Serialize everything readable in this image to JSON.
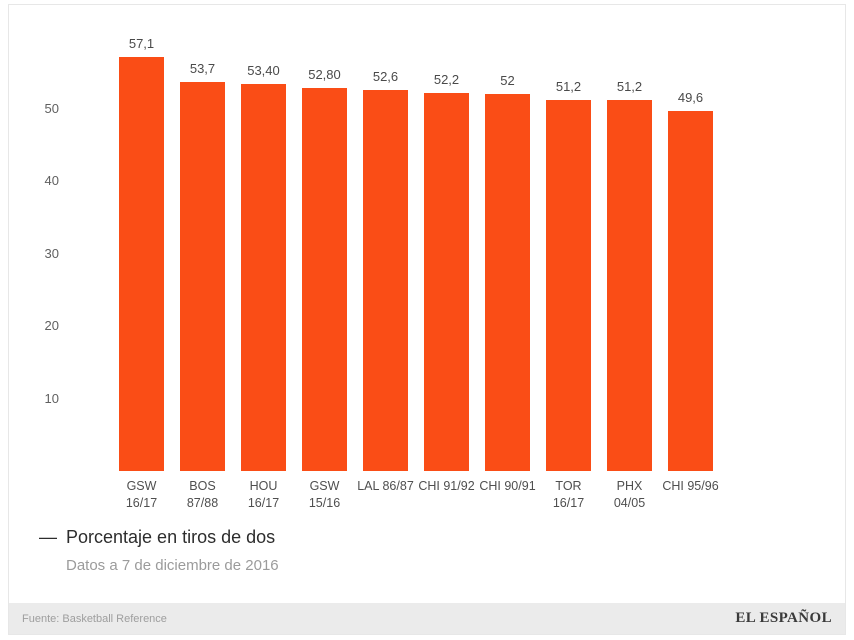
{
  "chart_data": {
    "type": "bar",
    "title": "",
    "series_name": "Porcentaje en tiros de dos",
    "categories": [
      "GSW 16/17",
      "BOS 87/88",
      "HOU 16/17",
      "GSW 15/16",
      "LAL 86/87",
      "CHI 91/92",
      "CHI 90/91",
      "TOR 16/17",
      "PHX 04/05",
      "CHI 95/96"
    ],
    "category_lines": [
      [
        "GSW",
        "16/17"
      ],
      [
        "BOS",
        "87/88"
      ],
      [
        "HOU",
        "16/17"
      ],
      [
        "GSW",
        "15/16"
      ],
      [
        "LAL 86/87"
      ],
      [
        "CHI 91/92"
      ],
      [
        "CHI 90/91"
      ],
      [
        "TOR",
        "16/17"
      ],
      [
        "PHX",
        "04/05"
      ],
      [
        "CHI 95/96"
      ]
    ],
    "values": [
      57.1,
      53.7,
      53.4,
      52.8,
      52.6,
      52.2,
      52,
      51.2,
      51.2,
      49.6
    ],
    "value_labels": [
      "57,1",
      "53,7",
      "53,40",
      "52,80",
      "52,6",
      "52,2",
      "52",
      "51,2",
      "51,2",
      "49,6"
    ],
    "xlabel": "",
    "ylabel": "",
    "yticks": [
      10,
      20,
      30,
      40,
      50
    ],
    "ylim": [
      0,
      60
    ],
    "grid": false,
    "legend_position": "bottom-left"
  },
  "legend": {
    "dash": "—",
    "series_label": "Porcentaje en tiros de dos",
    "subtitle": "Datos a 7 de diciembre de 2016"
  },
  "footer": {
    "source": "Fuente: Basketball Reference",
    "brand": "EL ESPAÑOL"
  },
  "colors": {
    "bar": "#fa4d16",
    "value_label": "#4a4a4a",
    "axis_label": "#606060",
    "legend_text": "#2d2d2d",
    "subtitle_text": "#9b9b9b",
    "footer_bg": "#ebebeb",
    "footer_text": "#9e9e9e",
    "brand_text": "#3a3a3a",
    "card_border": "#e7e7e7"
  }
}
